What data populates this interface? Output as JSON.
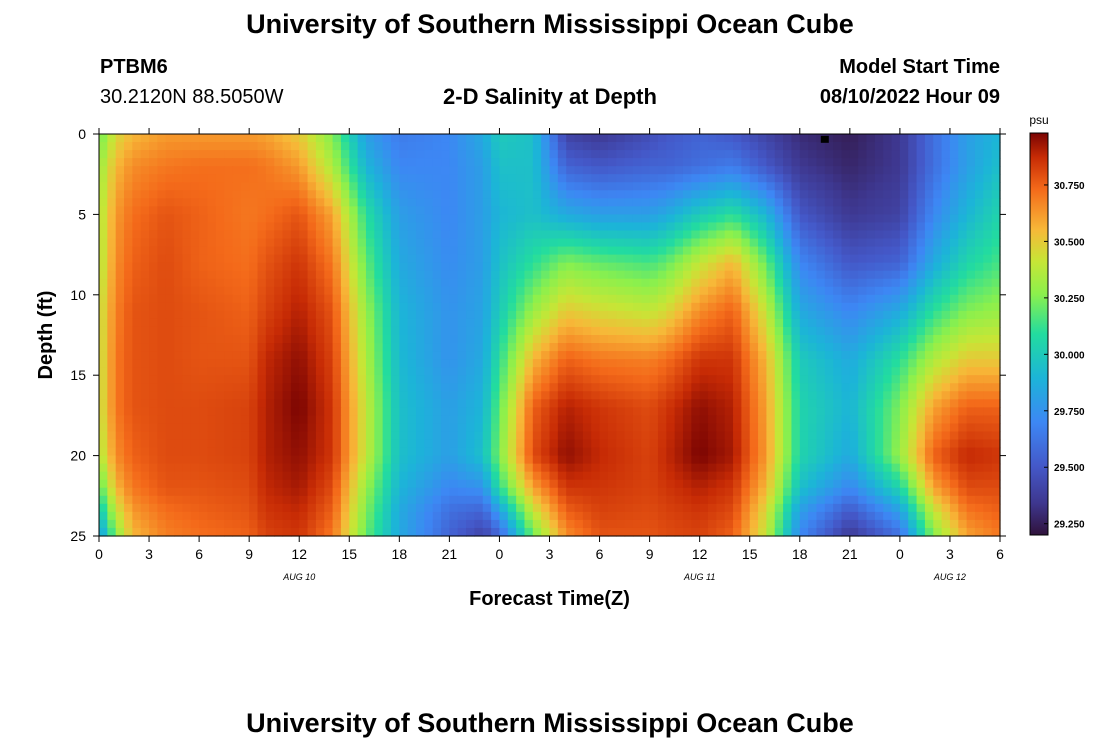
{
  "header": {
    "org_title": "University of Southern Mississippi Ocean Cube",
    "station_id": "PTBM6",
    "coordinates": "30.2120N  88.5050W",
    "chart_title": "2-D Salinity at Depth",
    "model_start_label": "Model Start Time",
    "model_start_value": "08/10/2022 Hour 09"
  },
  "footer": {
    "org_title": "University of Southern Mississippi Ocean Cube"
  },
  "chart_data": {
    "type": "heatmap",
    "title": "2-D Salinity at Depth",
    "xlabel": "Forecast Time(Z)",
    "ylabel": "Depth (ft)",
    "x_range_hours": [
      0,
      54
    ],
    "x_tick_hours": [
      0,
      3,
      6,
      9,
      12,
      15,
      18,
      21,
      24,
      27,
      30,
      33,
      36,
      39,
      42,
      45,
      48,
      51,
      54
    ],
    "x_tick_labels": [
      "0",
      "3",
      "6",
      "9",
      "12",
      "15",
      "18",
      "21",
      "0",
      "3",
      "6",
      "9",
      "12",
      "15",
      "18",
      "21",
      "0",
      "3",
      "6"
    ],
    "date_labels": [
      {
        "hour": 12,
        "text": "AUG 10"
      },
      {
        "hour": 36,
        "text": "AUG 11"
      },
      {
        "hour": 51,
        "text": "AUG 12"
      }
    ],
    "y_range": [
      0,
      25
    ],
    "y_ticks": [
      0,
      5,
      10,
      15,
      20,
      25
    ],
    "y_inverted": true,
    "colorbar": {
      "unit": "psu",
      "min": 29.2,
      "max": 30.98,
      "ticks": [
        30.75,
        30.5,
        30.25,
        30.0,
        29.75,
        29.5,
        29.25
      ],
      "tick_labels": [
        "30.750",
        "30.500",
        "30.250",
        "30.000",
        "29.750",
        "29.500",
        "29.250"
      ]
    },
    "marker": {
      "hour": 43.5,
      "depth": 0.3
    },
    "salinity_field": {
      "description": "Salinity (psu) by forecast hour (columns) and depth in ft (rows); bilinearly interpolated for rendering",
      "hours": [
        0,
        1,
        2,
        4,
        6,
        9,
        10,
        12,
        14,
        16,
        18,
        21,
        23,
        24,
        26,
        28,
        30,
        33,
        34,
        36,
        38,
        40,
        42,
        45,
        48,
        50,
        52,
        54
      ],
      "depths": [
        0,
        2,
        5,
        8,
        11,
        14,
        17,
        20,
        22,
        23.5,
        25
      ],
      "values": [
        [
          30.2,
          30.45,
          30.55,
          30.62,
          30.62,
          30.62,
          30.6,
          30.5,
          30.25,
          29.8,
          29.65,
          29.7,
          29.85,
          30.0,
          29.95,
          29.4,
          29.35,
          29.45,
          29.5,
          29.55,
          29.5,
          29.4,
          29.3,
          29.25,
          29.35,
          29.6,
          29.8,
          29.9
        ],
        [
          30.3,
          30.55,
          30.65,
          30.7,
          30.72,
          30.72,
          30.7,
          30.62,
          30.35,
          29.9,
          29.7,
          29.7,
          29.8,
          29.95,
          29.95,
          29.55,
          29.5,
          29.55,
          29.55,
          29.6,
          29.65,
          29.5,
          29.35,
          29.28,
          29.35,
          29.6,
          29.8,
          29.95
        ],
        [
          30.35,
          30.62,
          30.72,
          30.78,
          30.75,
          30.7,
          30.72,
          30.78,
          30.6,
          30.1,
          29.8,
          29.7,
          29.8,
          29.9,
          29.95,
          29.85,
          29.8,
          29.8,
          29.85,
          30.0,
          30.1,
          29.9,
          29.5,
          29.35,
          29.4,
          29.7,
          29.9,
          30.05
        ],
        [
          30.35,
          30.65,
          30.75,
          30.8,
          30.75,
          30.72,
          30.78,
          30.85,
          30.7,
          30.2,
          29.85,
          29.72,
          29.8,
          29.95,
          30.1,
          30.25,
          30.2,
          30.15,
          30.2,
          30.4,
          30.55,
          30.2,
          29.7,
          29.5,
          29.55,
          29.85,
          30.05,
          30.15
        ],
        [
          30.4,
          30.68,
          30.78,
          30.8,
          30.78,
          30.75,
          30.82,
          30.9,
          30.78,
          30.3,
          29.9,
          29.75,
          29.82,
          30.0,
          30.3,
          30.5,
          30.45,
          30.4,
          30.45,
          30.65,
          30.75,
          30.4,
          29.85,
          29.7,
          29.85,
          30.1,
          30.25,
          30.3
        ],
        [
          30.4,
          30.7,
          30.78,
          30.8,
          30.78,
          30.78,
          30.88,
          30.95,
          30.82,
          30.35,
          29.92,
          29.75,
          29.85,
          30.1,
          30.55,
          30.75,
          30.7,
          30.68,
          30.72,
          30.85,
          30.85,
          30.55,
          30.0,
          29.85,
          30.1,
          30.35,
          30.5,
          30.5
        ],
        [
          30.4,
          30.7,
          30.78,
          30.8,
          30.8,
          30.82,
          30.9,
          30.98,
          30.85,
          30.4,
          29.95,
          29.8,
          29.9,
          30.2,
          30.75,
          30.9,
          30.85,
          30.8,
          30.85,
          30.95,
          30.9,
          30.6,
          30.05,
          29.9,
          30.25,
          30.6,
          30.75,
          30.75
        ],
        [
          30.35,
          30.65,
          30.75,
          30.8,
          30.8,
          30.82,
          30.9,
          30.95,
          30.85,
          30.4,
          29.95,
          29.8,
          29.95,
          30.25,
          30.8,
          30.95,
          30.88,
          30.82,
          30.88,
          30.98,
          30.92,
          30.62,
          30.05,
          29.85,
          30.3,
          30.75,
          30.88,
          30.85
        ],
        [
          30.15,
          30.55,
          30.7,
          30.78,
          30.78,
          30.8,
          30.88,
          30.92,
          30.8,
          30.3,
          29.9,
          29.7,
          29.75,
          30.1,
          30.6,
          30.85,
          30.85,
          30.82,
          30.85,
          30.9,
          30.85,
          30.55,
          29.95,
          29.7,
          30.05,
          30.6,
          30.8,
          30.8
        ],
        [
          29.95,
          30.4,
          30.62,
          30.72,
          30.75,
          30.78,
          30.85,
          30.88,
          30.75,
          30.25,
          29.85,
          29.6,
          29.55,
          29.8,
          30.4,
          30.75,
          30.82,
          30.8,
          30.82,
          30.85,
          30.8,
          30.45,
          29.8,
          29.5,
          29.8,
          30.4,
          30.7,
          30.75
        ],
        [
          29.75,
          30.25,
          30.55,
          30.68,
          30.72,
          30.75,
          30.82,
          30.85,
          30.7,
          30.2,
          29.85,
          29.55,
          29.4,
          29.55,
          30.2,
          30.65,
          30.78,
          30.78,
          30.8,
          30.82,
          30.75,
          30.4,
          29.7,
          29.35,
          29.6,
          30.25,
          30.6,
          30.7
        ]
      ]
    }
  }
}
